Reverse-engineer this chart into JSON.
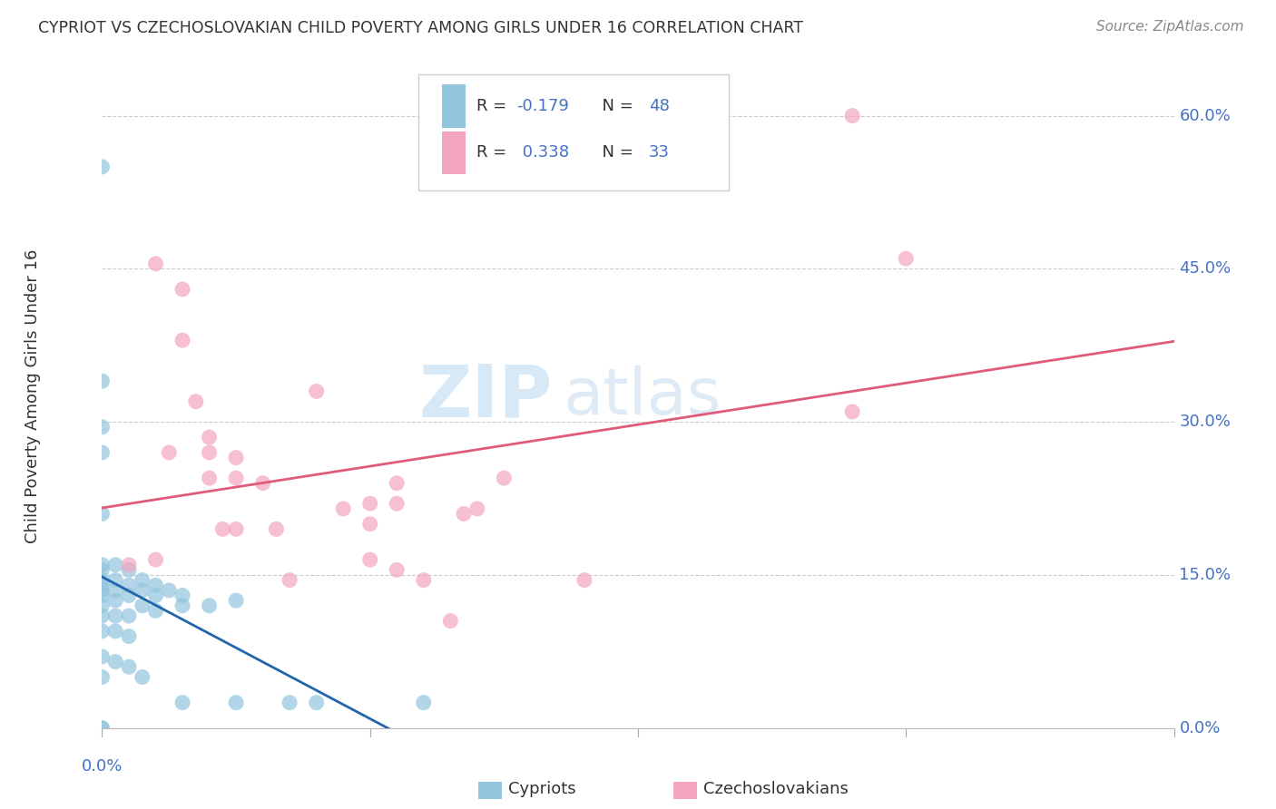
{
  "title": "CYPRIOT VS CZECHOSLOVAKIAN CHILD POVERTY AMONG GIRLS UNDER 16 CORRELATION CHART",
  "source": "Source: ZipAtlas.com",
  "ylabel": "Child Poverty Among Girls Under 16",
  "yticks": [
    0.0,
    0.15,
    0.3,
    0.45,
    0.6
  ],
  "ytick_labels": [
    "0.0%",
    "15.0%",
    "30.0%",
    "45.0%",
    "60.0%"
  ],
  "xlim": [
    0.0,
    0.4
  ],
  "ylim": [
    0.0,
    0.65
  ],
  "cypriot_R": -0.179,
  "cypriot_N": 48,
  "czechoslovakian_R": 0.338,
  "czechoslovakian_N": 33,
  "cypriot_color": "#92c5de",
  "czechoslovakian_color": "#f4a6c0",
  "cypriot_line_color": "#2166ac",
  "czechoslovakian_line_color": "#e05a7a",
  "text_color": "#4472c4",
  "legend_label_cypriot": "Cypriots",
  "legend_label_czecho": "Czechoslovakians",
  "watermark_zip": "ZIP",
  "watermark_atlas": "atlas",
  "cypriot_x": [
    0.0,
    0.0,
    0.0,
    0.0,
    0.0,
    0.0,
    0.0,
    0.0,
    0.0,
    0.0,
    0.0,
    0.0,
    0.0,
    0.0,
    0.0,
    0.0,
    0.005,
    0.005,
    0.005,
    0.005,
    0.005,
    0.005,
    0.005,
    0.01,
    0.01,
    0.01,
    0.01,
    0.01,
    0.01,
    0.015,
    0.015,
    0.015,
    0.015,
    0.02,
    0.02,
    0.02,
    0.025,
    0.03,
    0.03,
    0.03,
    0.04,
    0.05,
    0.05,
    0.07,
    0.08,
    0.12,
    0.0,
    0.0
  ],
  "cypriot_y": [
    0.55,
    0.34,
    0.295,
    0.27,
    0.21,
    0.16,
    0.155,
    0.145,
    0.14,
    0.135,
    0.13,
    0.12,
    0.11,
    0.095,
    0.07,
    0.05,
    0.16,
    0.145,
    0.135,
    0.125,
    0.11,
    0.095,
    0.065,
    0.155,
    0.14,
    0.13,
    0.11,
    0.09,
    0.06,
    0.145,
    0.135,
    0.12,
    0.05,
    0.14,
    0.13,
    0.115,
    0.135,
    0.13,
    0.12,
    0.025,
    0.12,
    0.025,
    0.125,
    0.025,
    0.025,
    0.025,
    0.0,
    0.0
  ],
  "czechoslovakian_x": [
    0.01,
    0.02,
    0.02,
    0.025,
    0.03,
    0.03,
    0.035,
    0.04,
    0.04,
    0.04,
    0.045,
    0.05,
    0.05,
    0.05,
    0.06,
    0.065,
    0.07,
    0.08,
    0.09,
    0.1,
    0.1,
    0.1,
    0.11,
    0.11,
    0.11,
    0.12,
    0.13,
    0.135,
    0.14,
    0.15,
    0.18,
    0.28,
    0.3
  ],
  "czechoslovakian_y": [
    0.16,
    0.455,
    0.165,
    0.27,
    0.43,
    0.38,
    0.32,
    0.285,
    0.27,
    0.245,
    0.195,
    0.265,
    0.245,
    0.195,
    0.24,
    0.195,
    0.145,
    0.33,
    0.215,
    0.22,
    0.2,
    0.165,
    0.24,
    0.22,
    0.155,
    0.145,
    0.105,
    0.21,
    0.215,
    0.245,
    0.145,
    0.31,
    0.46
  ],
  "czk_extra_x": [
    0.28
  ],
  "czk_extra_y": [
    0.6
  ],
  "cy_line_x_end": 0.13,
  "cz_line_x_start": 0.0,
  "cz_line_x_end": 0.4
}
